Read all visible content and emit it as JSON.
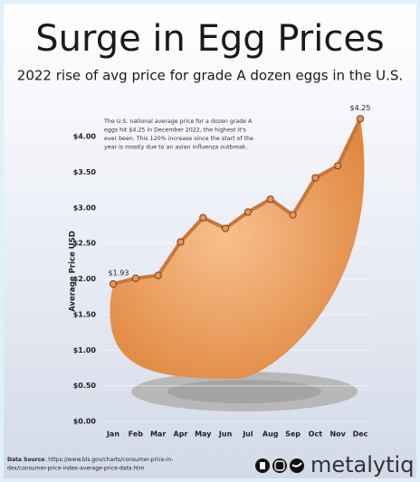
{
  "chart_data": {
    "type": "line",
    "title": "Surge in Egg Prices",
    "subtitle": "2022 rise of avg price for grade A dozen eggs in the U.S.",
    "y_label": "Average Price USD",
    "categories": [
      "Jan",
      "Feb",
      "Mar",
      "Apr",
      "May",
      "Jun",
      "Jul",
      "Aug",
      "Sep",
      "Oct",
      "Nov",
      "Dec"
    ],
    "values": [
      1.93,
      2.01,
      2.05,
      2.52,
      2.86,
      2.71,
      2.94,
      3.12,
      2.9,
      3.42,
      3.59,
      4.25
    ],
    "value_labels": [
      "$1.93",
      null,
      null,
      null,
      null,
      null,
      null,
      null,
      null,
      null,
      null,
      "$4.25"
    ],
    "color": "#c8773c",
    "ylim": [
      0,
      4.25
    ],
    "yticks": [
      {
        "value": 0,
        "label": "$0.00"
      },
      {
        "value": 0.5,
        "label": "$0.50"
      },
      {
        "value": 1,
        "label": "$1.00"
      },
      {
        "value": 1.5,
        "label": "$1.50"
      },
      {
        "value": 2,
        "label": "$2.00"
      },
      {
        "value": 2.5,
        "label": "$2.50"
      },
      {
        "value": 3,
        "label": "$3.00"
      },
      {
        "value": 3.5,
        "label": "$3.50"
      },
      {
        "value": 4,
        "label": "$4.00"
      }
    ],
    "grid": true,
    "annotation": [
      "The U.S. national average price for a dozen grade A",
      "eggs hit $4.25 in December 2022, the highest it's",
      "ever been. This 120% increase since the start of the",
      "year is mostly due to an avian influenza outbreak."
    ],
    "source_label": "Data Source",
    "source_lines": [
      ": https://www.bls.gov/charts/consumer-price-in-",
      "dex/consumer-price-index-average-price-data.htm"
    ],
    "brand": "metalytiq"
  }
}
